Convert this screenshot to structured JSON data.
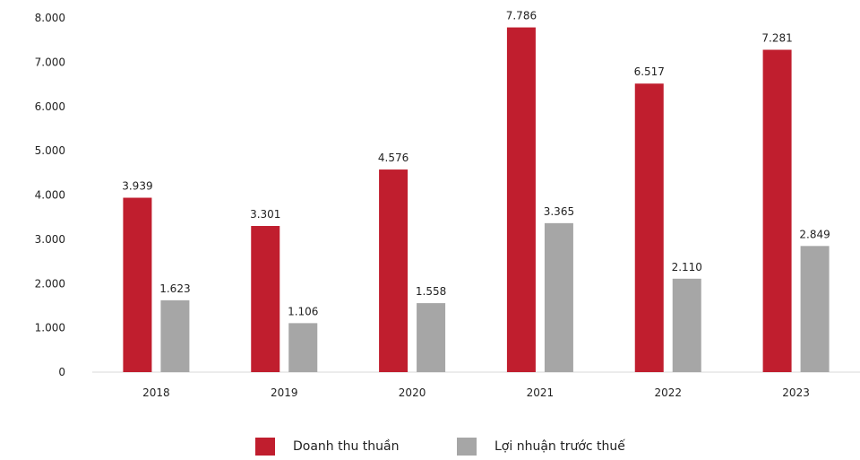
{
  "chart_data": {
    "type": "bar",
    "title": "",
    "xlabel": "",
    "ylabel": "",
    "categories": [
      "2018",
      "2019",
      "2020",
      "2021",
      "2022",
      "2023"
    ],
    "series": [
      {
        "name": "Doanh thu thuần",
        "color": "#c01e2e",
        "values": [
          3939,
          3301,
          4576,
          7786,
          6517,
          7281
        ],
        "labels": [
          "3.939",
          "3.301",
          "4.576",
          "7.786",
          "6.517",
          "7.281"
        ]
      },
      {
        "name": "Lợi nhuận trước thuế",
        "color": "#a6a6a6",
        "values": [
          1623,
          1106,
          1558,
          3365,
          2110,
          2849
        ],
        "labels": [
          "1.623",
          "1.106",
          "1.558",
          "3.365",
          "2.110",
          "2.849"
        ]
      }
    ],
    "ylim": [
      0,
      8000
    ],
    "yticks": [
      0,
      1000,
      2000,
      3000,
      4000,
      5000,
      6000,
      7000,
      8000
    ],
    "ytick_labels": [
      "0",
      "1.000",
      "2.000",
      "3.000",
      "4.000",
      "5.000",
      "6.000",
      "7.000",
      "8.000"
    ],
    "grid": false,
    "legend_position": "bottom"
  }
}
